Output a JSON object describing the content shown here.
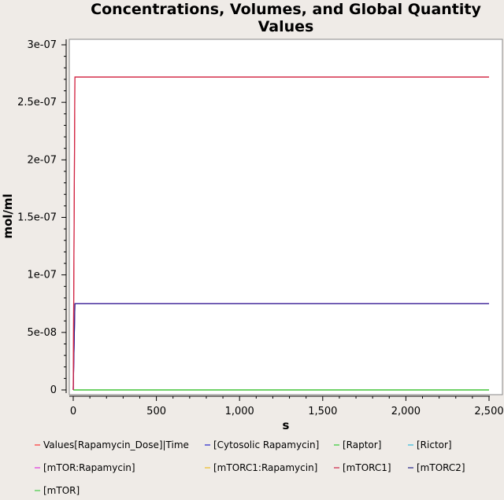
{
  "chart_data": {
    "type": "line",
    "title": "Concentrations, Volumes, and Global Quantity Values",
    "title_lines": [
      "Concentrations, Volumes, and Global Quantity",
      "Values"
    ],
    "xlabel": "s",
    "ylabel": "mol/ml",
    "xlim": [
      0,
      2500
    ],
    "ylim": [
      0,
      3e-07
    ],
    "x_ticks": [
      {
        "value": 0,
        "label": "0"
      },
      {
        "value": 500,
        "label": "500"
      },
      {
        "value": 1000,
        "label": "1,000"
      },
      {
        "value": 1500,
        "label": "1,500"
      },
      {
        "value": 2000,
        "label": "2,000"
      },
      {
        "value": 2500,
        "label": "2,500"
      }
    ],
    "y_ticks": [
      {
        "value": 0,
        "label": "0"
      },
      {
        "value": 5e-08,
        "label": "5e-08"
      },
      {
        "value": 1e-07,
        "label": "1e-07"
      },
      {
        "value": 1.5e-07,
        "label": "1.5e-07"
      },
      {
        "value": 2e-07,
        "label": "2e-07"
      },
      {
        "value": 2.5e-07,
        "label": "2.5e-07"
      },
      {
        "value": 3e-07,
        "label": "3e-07"
      }
    ],
    "grid": false,
    "legend_position": "bottom",
    "series": [
      {
        "name": "Values[Rapamycin_Dose]|Time",
        "color": "#ff3333",
        "x": [
          0,
          10,
          2500
        ],
        "y": [
          0,
          2.72e-07,
          2.72e-07
        ]
      },
      {
        "name": "[Cytosolic Rapamycin]",
        "color": "#2222cc",
        "x": [
          0,
          10,
          2500
        ],
        "y": [
          0,
          7.5e-08,
          7.5e-08
        ]
      },
      {
        "name": "[Raptor]",
        "color": "#33cc33",
        "x": [
          0,
          2500
        ],
        "y": [
          0,
          0
        ]
      },
      {
        "name": "[Rictor]",
        "color": "#33bbdd",
        "x": [
          0,
          2500
        ],
        "y": [
          0,
          0
        ]
      },
      {
        "name": "[mTOR:Rapamycin]",
        "color": "#dd33dd",
        "x": [
          0,
          10,
          2500
        ],
        "y": [
          0,
          7.5e-08,
          7.5e-08
        ]
      },
      {
        "name": "[mTORC1:Rapamycin]",
        "color": "#eebb22",
        "x": [
          0,
          2500
        ],
        "y": [
          0,
          0
        ]
      },
      {
        "name": "[mTORC1]",
        "color": "#cc2244",
        "x": [
          0,
          10,
          2500
        ],
        "y": [
          0,
          2.72e-07,
          2.72e-07
        ]
      },
      {
        "name": "[mTORC2]",
        "color": "#222288",
        "x": [
          0,
          10,
          2500
        ],
        "y": [
          0,
          7.5e-08,
          7.5e-08
        ]
      },
      {
        "name": "[mTOR]",
        "color": "#44cc44",
        "x": [
          0,
          2500
        ],
        "y": [
          0,
          0
        ]
      }
    ]
  }
}
